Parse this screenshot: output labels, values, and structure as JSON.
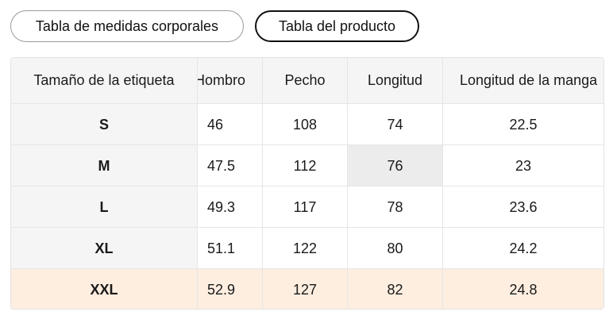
{
  "tabs": [
    {
      "label": "Tabla de medidas corporales",
      "active": false
    },
    {
      "label": "Tabla del producto",
      "active": true
    }
  ],
  "table": {
    "headers": [
      "Tamaño de la etiqueta",
      "Hombro",
      "Pecho",
      "Longitud",
      "Longitud de la manga"
    ],
    "rows": [
      [
        "S",
        "46",
        "108",
        "74",
        "22.5"
      ],
      [
        "M",
        "47.5",
        "112",
        "76",
        "23"
      ],
      [
        "L",
        "49.3",
        "117",
        "78",
        "23.6"
      ],
      [
        "XL",
        "51.1",
        "122",
        "80",
        "24.2"
      ],
      [
        "XXL",
        "52.9",
        "127",
        "82",
        "24.8"
      ]
    ]
  },
  "colors": {
    "highlight_row": "#fdeee0",
    "header_bg": "#f5f5f5",
    "hover_cell": "#ececec"
  }
}
